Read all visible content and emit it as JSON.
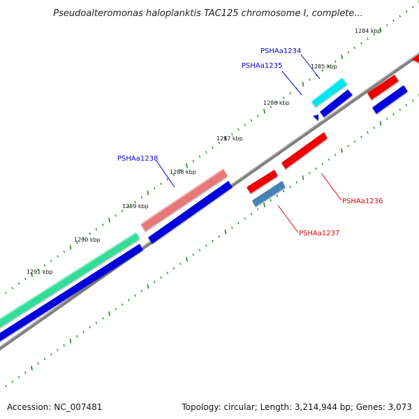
{
  "title": "Pseudoalteromonas haloplanktis TAC125 chromosome I, complete...",
  "accession": "Accession: NC_007481",
  "topology": "Topology: circular; Length: 3,214,944 bp; Genes: 3,073",
  "colors": {
    "backbone": "#808080",
    "tick_dots": "#1a8a1a",
    "label_forward": "#0000cc",
    "label_reverse": "#dd0000"
  },
  "ticks": [
    "1284 kbp",
    "1285 kbp",
    "1286 kbp",
    "1287 kbp",
    "1288 kbp",
    "1289 kbp",
    "1290 kbp",
    "1291 kbp"
  ],
  "gene_labels": [
    {
      "name": "PSHAa1234",
      "strand": "forward"
    },
    {
      "name": "PSHAa1235",
      "strand": "forward"
    },
    {
      "name": "PSHAa1238",
      "strand": "forward"
    },
    {
      "name": "PSHAa1236",
      "strand": "reverse"
    },
    {
      "name": "PSHAa1237",
      "strand": "reverse"
    }
  ],
  "features": [
    {
      "id": "PSHAa1234",
      "color": "#00e5ee"
    },
    {
      "id": "PSHAa1235",
      "color": "#0000dd"
    },
    {
      "id": "PSHAa1238",
      "color": "#e87878"
    },
    {
      "id": "PSHAa1236",
      "color": "#ee0000"
    },
    {
      "id": "PSHAa1237",
      "color": "#4682b4"
    },
    {
      "id": "cds-large",
      "color": "#33dd99"
    }
  ]
}
